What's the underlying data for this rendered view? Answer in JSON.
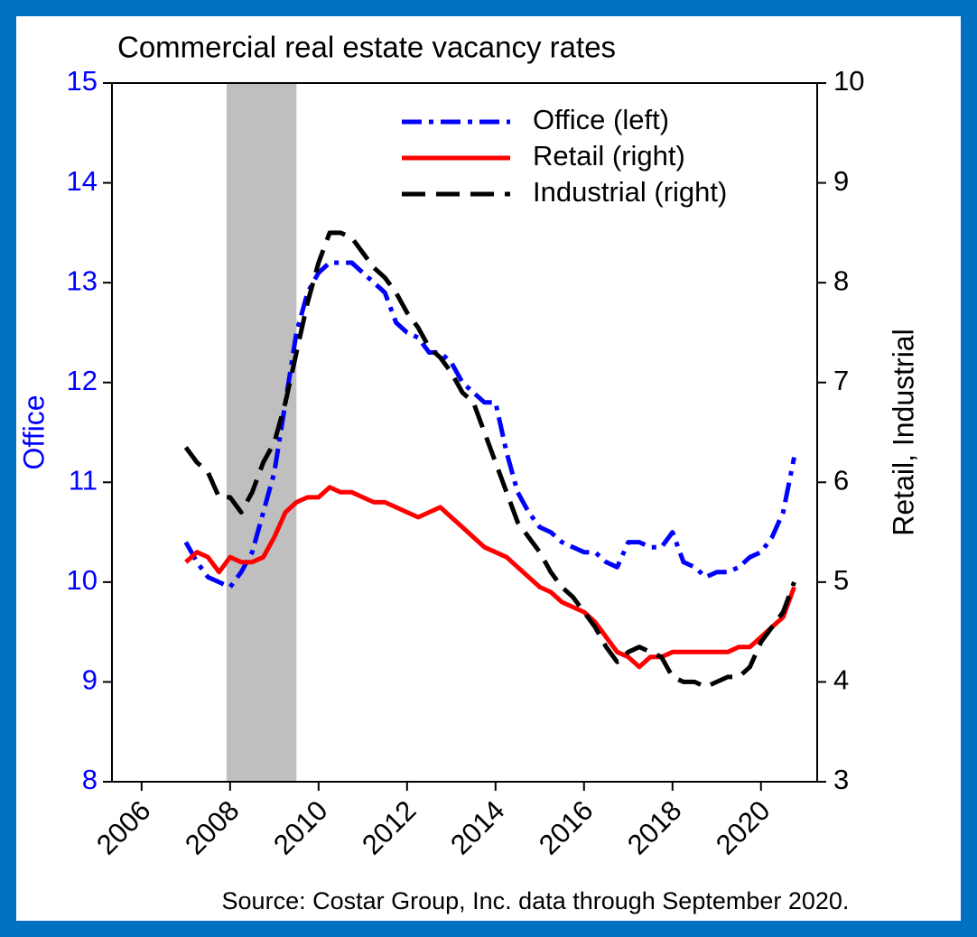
{
  "chart_data": {
    "type": "line",
    "title": "Commercial real estate vacancy rates",
    "ylabel": "Office",
    "y2label": "Retail, Industrial",
    "note": "Source: Costar Group, Inc. data through September 2020.",
    "x": [
      2007.0,
      2007.25,
      2007.5,
      2007.75,
      2008.0,
      2008.25,
      2008.5,
      2008.75,
      2009.0,
      2009.25,
      2009.5,
      2009.75,
      2010.0,
      2010.25,
      2010.5,
      2010.75,
      2011.0,
      2011.25,
      2011.5,
      2011.75,
      2012.0,
      2012.25,
      2012.5,
      2012.75,
      2013.0,
      2013.25,
      2013.5,
      2013.75,
      2014.0,
      2014.25,
      2014.5,
      2014.75,
      2015.0,
      2015.25,
      2015.5,
      2015.75,
      2016.0,
      2016.25,
      2016.5,
      2016.75,
      2017.0,
      2017.25,
      2017.5,
      2017.75,
      2018.0,
      2018.25,
      2018.5,
      2018.75,
      2019.0,
      2019.25,
      2019.5,
      2019.75,
      2020.0,
      2020.25,
      2020.5,
      2020.75
    ],
    "series": [
      {
        "name": "Office (left)",
        "color": "#0000ff",
        "style": "dashdot",
        "axis": "y",
        "values": [
          10.4,
          10.2,
          10.05,
          10.0,
          9.95,
          10.1,
          10.3,
          10.7,
          11.1,
          11.8,
          12.5,
          12.9,
          13.1,
          13.2,
          13.2,
          13.2,
          13.1,
          13.0,
          12.9,
          12.6,
          12.5,
          12.45,
          12.3,
          12.3,
          12.2,
          12.0,
          11.9,
          11.8,
          11.8,
          11.3,
          10.9,
          10.7,
          10.55,
          10.5,
          10.4,
          10.35,
          10.3,
          10.3,
          10.2,
          10.15,
          10.4,
          10.4,
          10.35,
          10.35,
          10.5,
          10.2,
          10.15,
          10.05,
          10.1,
          10.1,
          10.15,
          10.25,
          10.3,
          10.45,
          10.7,
          11.25
        ]
      },
      {
        "name": "Retail (right)",
        "color": "#ff0000",
        "style": "solid",
        "axis": "y2",
        "values": [
          5.2,
          5.3,
          5.25,
          5.1,
          5.25,
          5.2,
          5.2,
          5.25,
          5.45,
          5.7,
          5.8,
          5.85,
          5.85,
          5.95,
          5.9,
          5.9,
          5.85,
          5.8,
          5.8,
          5.75,
          5.7,
          5.65,
          5.7,
          5.75,
          5.65,
          5.55,
          5.45,
          5.35,
          5.3,
          5.25,
          5.15,
          5.05,
          4.95,
          4.9,
          4.8,
          4.75,
          4.7,
          4.6,
          4.45,
          4.3,
          4.25,
          4.15,
          4.25,
          4.25,
          4.3,
          4.3,
          4.3,
          4.3,
          4.3,
          4.3,
          4.35,
          4.35,
          4.45,
          4.55,
          4.65,
          4.95
        ]
      },
      {
        "name": "Industrial (right)",
        "color": "#000000",
        "style": "dashed",
        "axis": "y2",
        "values": [
          6.35,
          6.2,
          6.1,
          5.85,
          5.85,
          5.7,
          5.9,
          6.2,
          6.4,
          6.8,
          7.3,
          7.8,
          8.2,
          8.5,
          8.5,
          8.45,
          8.3,
          8.15,
          8.05,
          7.9,
          7.7,
          7.55,
          7.35,
          7.25,
          7.1,
          6.9,
          6.8,
          6.5,
          6.2,
          5.9,
          5.6,
          5.45,
          5.3,
          5.1,
          4.95,
          4.85,
          4.7,
          4.55,
          4.35,
          4.2,
          4.3,
          4.35,
          4.3,
          4.25,
          4.05,
          4.0,
          4.0,
          3.95,
          4.0,
          4.05,
          4.05,
          4.15,
          4.4,
          4.55,
          4.7,
          5.0
        ]
      }
    ],
    "shaded_periods": [
      [
        2007.92,
        2009.5
      ]
    ],
    "xlim": [
      2005.33,
      2021.27
    ],
    "xticks": [
      2006,
      2008,
      2010,
      2012,
      2014,
      2016,
      2018,
      2020
    ],
    "ylim": [
      8,
      15
    ],
    "yticks": [
      8,
      9,
      10,
      11,
      12,
      13,
      14,
      15
    ],
    "y2lim": [
      3,
      10
    ],
    "y2ticks": [
      3,
      4,
      5,
      6,
      7,
      8,
      9,
      10
    ],
    "legend": "top-right",
    "ylabel_color": "#0000ff"
  }
}
